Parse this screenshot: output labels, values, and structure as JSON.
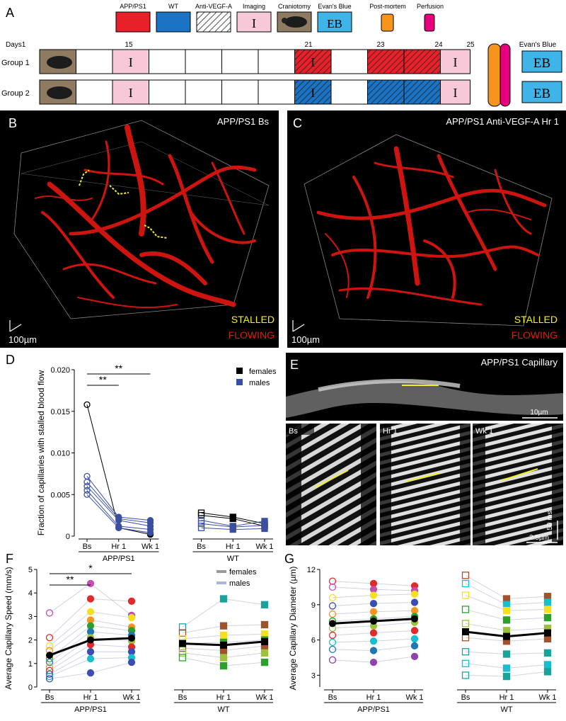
{
  "panel_labels": {
    "a": "A",
    "b": "B",
    "c": "C",
    "d": "D",
    "e": "E",
    "f": "F",
    "g": "G"
  },
  "timeline": {
    "legend": [
      {
        "key": "app",
        "label": "APP/PS1",
        "color": "#e8202a"
      },
      {
        "key": "wt",
        "label": "WT",
        "color": "#1a73c4"
      },
      {
        "key": "antivegf",
        "label": "Anti-VEGF-A"
      },
      {
        "key": "imaging",
        "label": "Imaging",
        "glyph": "I",
        "color": "#f6c8d8"
      },
      {
        "key": "craniotomy",
        "label": "Craniotomy"
      },
      {
        "key": "evans",
        "label": "Evan's Blue",
        "glyph": "EB",
        "color": "#3fb4e8"
      },
      {
        "key": "postmortem",
        "label": "Post-mortem",
        "color": "#f7941d"
      },
      {
        "key": "perfusion",
        "label": "Perfusion",
        "color": "#e6007e"
      }
    ],
    "days_label": "Days",
    "day_marks": [
      "1",
      "15",
      "21",
      "23",
      "24",
      "25"
    ],
    "evans_label": "Evan's Blue",
    "groups": [
      "Group 1",
      "Group 2"
    ],
    "imaging_glyph": "I",
    "eb_glyph": "EB"
  },
  "panel_b": {
    "title": "APP/PS1 Bs",
    "stalled": "STALLED",
    "flowing": "FLOWING",
    "scale": "100µm"
  },
  "panel_c": {
    "title": "APP/PS1 Anti-VEGF-A Hr 1",
    "stalled": "STALLED",
    "flowing": "FLOWING",
    "scale": "100µm"
  },
  "panel_e": {
    "title": "APP/PS1 Capillary",
    "scale_top": "10µm",
    "subpanels": [
      "Bs",
      "Hr 1",
      "Wk 1"
    ],
    "scale_time": "50 ms",
    "scale_space": "2.5µm"
  },
  "colors": {
    "stall": "#f2ef2a",
    "vessel": "#e01a12",
    "females": "#000000",
    "males": "#3a4fa0",
    "line_females": "#9a9a9a",
    "line_males": "#aab7dd"
  },
  "chart_data": [
    {
      "type": "scatter",
      "panel": "D",
      "ylabel": "Fraction of capillaries with stalled blood flow",
      "ylim": [
        0,
        0.02
      ],
      "yticks": [
        "0",
        "0.005",
        "0.010",
        "0.015",
        "0.020"
      ],
      "groups": [
        {
          "name": "APP/PS1",
          "timepoints": [
            "Bs",
            "Hr 1",
            "Wk 1"
          ]
        },
        {
          "name": "WT",
          "timepoints": [
            "Bs",
            "Hr 1",
            "Wk 1"
          ]
        }
      ],
      "legend": [
        "females",
        "males"
      ],
      "significance": [
        "**",
        "**"
      ],
      "series": [
        {
          "group": "APP/PS1",
          "sex": "females",
          "values": [
            0.0158,
            0.001,
            0.0002
          ]
        },
        {
          "group": "APP/PS1",
          "sex": "males",
          "values": [
            0.0072,
            0.0023,
            0.0019
          ]
        },
        {
          "group": "APP/PS1",
          "sex": "males",
          "values": [
            0.0065,
            0.0021,
            0.0016
          ]
        },
        {
          "group": "APP/PS1",
          "sex": "males",
          "values": [
            0.006,
            0.0019,
            0.0012
          ]
        },
        {
          "group": "APP/PS1",
          "sex": "males",
          "values": [
            0.0055,
            0.0012,
            0.0008
          ]
        },
        {
          "group": "APP/PS1",
          "sex": "males",
          "values": [
            0.005,
            0.001,
            0.0004
          ]
        },
        {
          "group": "WT",
          "sex": "females",
          "values": [
            0.0028,
            0.0023,
            0.0015
          ]
        },
        {
          "group": "WT",
          "sex": "females",
          "values": [
            0.0025,
            0.0021,
            0.0012
          ]
        },
        {
          "group": "WT",
          "sex": "males",
          "values": [
            0.0019,
            0.0012,
            0.0018
          ]
        },
        {
          "group": "WT",
          "sex": "males",
          "values": [
            0.0015,
            0.0011,
            0.0013
          ]
        },
        {
          "group": "WT",
          "sex": "males",
          "values": [
            0.001,
            0.0008,
            0.0009
          ]
        }
      ]
    },
    {
      "type": "scatter",
      "panel": "F",
      "ylabel": "Average Capillary Speed (mm/s)",
      "ylim": [
        0,
        5
      ],
      "yticks": [
        "0",
        "1",
        "2",
        "3",
        "4",
        "5"
      ],
      "groups": [
        {
          "name": "APP/PS1",
          "timepoints": [
            "Bs",
            "Hr 1",
            "Wk 1"
          ]
        },
        {
          "name": "WT",
          "timepoints": [
            "Bs",
            "Hr 1",
            "Wk 1"
          ]
        }
      ],
      "legend": [
        "females",
        "males"
      ],
      "significance": [
        "**",
        "*"
      ],
      "means": [
        {
          "group": "APP/PS1",
          "values": [
            1.35,
            2.0,
            2.08
          ]
        },
        {
          "group": "WT",
          "values": [
            1.85,
            1.78,
            1.93
          ]
        }
      ],
      "series": [
        {
          "group": "APP/PS1",
          "values": [
            3.15,
            4.4,
            3.05
          ],
          "color": "#c34fb1"
        },
        {
          "group": "APP/PS1",
          "values": [
            2.1,
            3.75,
            3.65
          ],
          "color": "#e12a2a"
        },
        {
          "group": "APP/PS1",
          "values": [
            1.75,
            3.2,
            2.95
          ],
          "color": "#f5e020"
        },
        {
          "group": "APP/PS1",
          "values": [
            1.55,
            2.85,
            2.55
          ],
          "color": "#f7941d"
        },
        {
          "group": "APP/PS1",
          "values": [
            1.2,
            2.6,
            2.4
          ],
          "color": "#2ca02c"
        },
        {
          "group": "APP/PS1",
          "values": [
            1.05,
            2.35,
            2.2
          ],
          "color": "#1f77b4"
        },
        {
          "group": "APP/PS1",
          "values": [
            0.85,
            2.1,
            1.95
          ],
          "color": "#9cc13a"
        },
        {
          "group": "APP/PS1",
          "values": [
            0.7,
            1.8,
            1.7
          ],
          "color": "#e12a2a"
        },
        {
          "group": "APP/PS1",
          "values": [
            0.55,
            1.5,
            1.5
          ],
          "color": "#3b4db0"
        },
        {
          "group": "APP/PS1",
          "values": [
            0.45,
            1.2,
            1.25
          ],
          "color": "#17becf"
        },
        {
          "group": "APP/PS1",
          "values": [
            0.35,
            0.6,
            1.05
          ],
          "color": "#3b4db0"
        },
        {
          "group": "WT",
          "values": [
            2.55,
            3.75,
            3.5
          ],
          "color": "#1aa39a"
        },
        {
          "group": "WT",
          "values": [
            2.3,
            2.6,
            2.65
          ],
          "color": "#a0522d"
        },
        {
          "group": "WT",
          "values": [
            2.05,
            2.2,
            2.25
          ],
          "color": "#f5e020"
        },
        {
          "group": "WT",
          "values": [
            1.85,
            1.9,
            2.0
          ],
          "color": "#2ca02c"
        },
        {
          "group": "WT",
          "values": [
            1.65,
            1.55,
            1.75
          ],
          "color": "#a0522d"
        },
        {
          "group": "WT",
          "values": [
            1.45,
            1.25,
            1.45
          ],
          "color": "#9cc13a"
        },
        {
          "group": "WT",
          "values": [
            1.25,
            0.9,
            1.05
          ],
          "color": "#2ca02c"
        }
      ]
    },
    {
      "type": "scatter",
      "panel": "G",
      "ylabel": "Average Capillary Diameter (µm)",
      "ylim": [
        2,
        12
      ],
      "yticks": [
        "3",
        "6",
        "9",
        "12"
      ],
      "groups": [
        {
          "name": "APP/PS1",
          "timepoints": [
            "Bs",
            "Hr 1",
            "Wk 1"
          ]
        },
        {
          "name": "WT",
          "timepoints": [
            "Bs",
            "Hr 1",
            "Wk 1"
          ]
        }
      ],
      "means": [
        {
          "group": "APP/PS1",
          "values": [
            7.4,
            7.6,
            7.8
          ]
        },
        {
          "group": "WT",
          "values": [
            6.7,
            6.3,
            6.6
          ]
        }
      ],
      "series": [
        {
          "group": "APP/PS1",
          "values": [
            11.0,
            10.8,
            10.6
          ],
          "color": "#e12a2a"
        },
        {
          "group": "APP/PS1",
          "values": [
            10.5,
            10.3,
            10.2
          ],
          "color": "#c34fb1"
        },
        {
          "group": "APP/PS1",
          "values": [
            9.6,
            9.8,
            9.9
          ],
          "color": "#f5e020"
        },
        {
          "group": "APP/PS1",
          "values": [
            8.9,
            9.1,
            9.2
          ],
          "color": "#3b4db0"
        },
        {
          "group": "APP/PS1",
          "values": [
            8.2,
            8.4,
            8.5
          ],
          "color": "#f7941d"
        },
        {
          "group": "APP/PS1",
          "values": [
            7.6,
            7.8,
            8.0
          ],
          "color": "#2ca02c"
        },
        {
          "group": "APP/PS1",
          "values": [
            7.0,
            7.2,
            7.5
          ],
          "color": "#9cc13a"
        },
        {
          "group": "APP/PS1",
          "values": [
            6.4,
            6.6,
            6.8
          ],
          "color": "#e12a2a"
        },
        {
          "group": "APP/PS1",
          "values": [
            5.8,
            5.9,
            6.1
          ],
          "color": "#17becf"
        },
        {
          "group": "APP/PS1",
          "values": [
            5.2,
            5.1,
            5.5
          ],
          "color": "#1f77b4"
        },
        {
          "group": "APP/PS1",
          "values": [
            4.3,
            4.1,
            4.6
          ],
          "color": "#8e44ad"
        },
        {
          "group": "WT",
          "values": [
            11.5,
            9.5,
            9.7
          ],
          "color": "#a0522d"
        },
        {
          "group": "WT",
          "values": [
            10.8,
            9.0,
            9.2
          ],
          "color": "#17becf"
        },
        {
          "group": "WT",
          "values": [
            9.8,
            8.5,
            8.6
          ],
          "color": "#f5e020"
        },
        {
          "group": "WT",
          "values": [
            8.6,
            7.7,
            7.9
          ],
          "color": "#2ca02c"
        },
        {
          "group": "WT",
          "values": [
            7.4,
            6.8,
            7.0
          ],
          "color": "#9cc13a"
        },
        {
          "group": "WT",
          "values": [
            6.2,
            5.9,
            6.1
          ],
          "color": "#a0522d"
        },
        {
          "group": "WT",
          "values": [
            5.0,
            4.8,
            4.9
          ],
          "color": "#1aa39a"
        },
        {
          "group": "WT",
          "values": [
            4.0,
            3.6,
            3.9
          ],
          "color": "#17becf"
        },
        {
          "group": "WT",
          "values": [
            3.0,
            2.9,
            3.3
          ],
          "color": "#1aa39a"
        }
      ]
    }
  ]
}
